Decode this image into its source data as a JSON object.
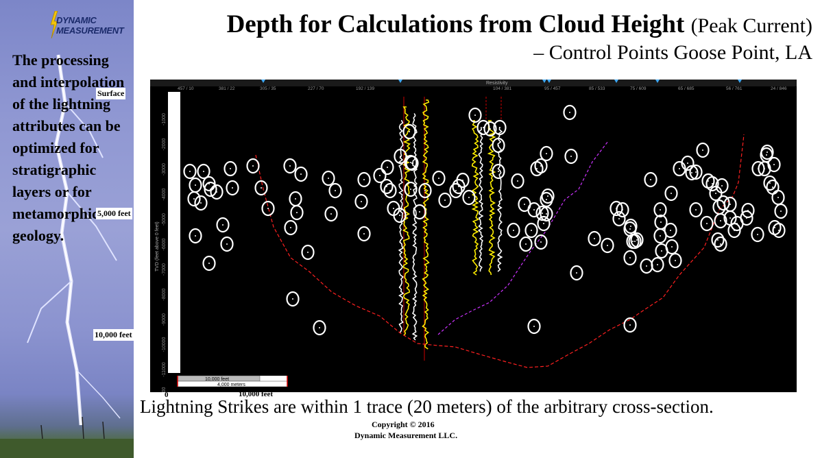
{
  "colors": {
    "plot_bg": "#000000",
    "well_log_white": "#ffffff",
    "well_log_yellow": "#ffee00",
    "horizon_red": "#ff2020",
    "horizon_magenta": "#cc33ff",
    "strike_marker": "#ffffff"
  },
  "logo": {
    "line1": "DYNAMIC",
    "line2": "MEASUREMENT",
    "icon": "lightning-bolt-icon"
  },
  "sidebar": {
    "text": "The processing and interpolation of the lightning attributes can be optimized for stratigraphic layers or  for metamorphic geology."
  },
  "title": {
    "main": "Depth for Calculations from Cloud Height",
    "paren": "(Peak Current)",
    "sub": "– Control Points Goose Point, LA"
  },
  "depth_labels": {
    "surface": "Surface",
    "mid": "5,000 feet",
    "deep": "10,000 feet"
  },
  "plot": {
    "top_label": "Resistivity",
    "top_ticks": [
      "457 / 10",
      "381 / 22",
      "305 / 35",
      "227 / 70",
      "192 / 139",
      "104 / 381",
      "95 / 457",
      "85 / 533",
      "75 / 609",
      "65 / 685",
      "56 / 761",
      "24 / 846"
    ],
    "y_axis_label": "TVD (feet above 0 feet)",
    "y_ticks": [
      "-1000",
      "-2000",
      "-3000",
      "-4000",
      "-5000",
      "-6000",
      "-7000",
      "-8000",
      "-9000",
      "-10000",
      "-11000",
      "-12000"
    ],
    "scale_bar_feet": "10,000 feet",
    "scale_bar_meters": "4,000 meters",
    "scale_zero": "0",
    "scale_end": "10,000 feet"
  },
  "caption": "Lightning Strikes are within 1 trace (20 meters) of the arbitrary cross-section.",
  "copyright": {
    "line1": "Copyright © 2016",
    "line2": "Dynamic Measurement LLC."
  }
}
